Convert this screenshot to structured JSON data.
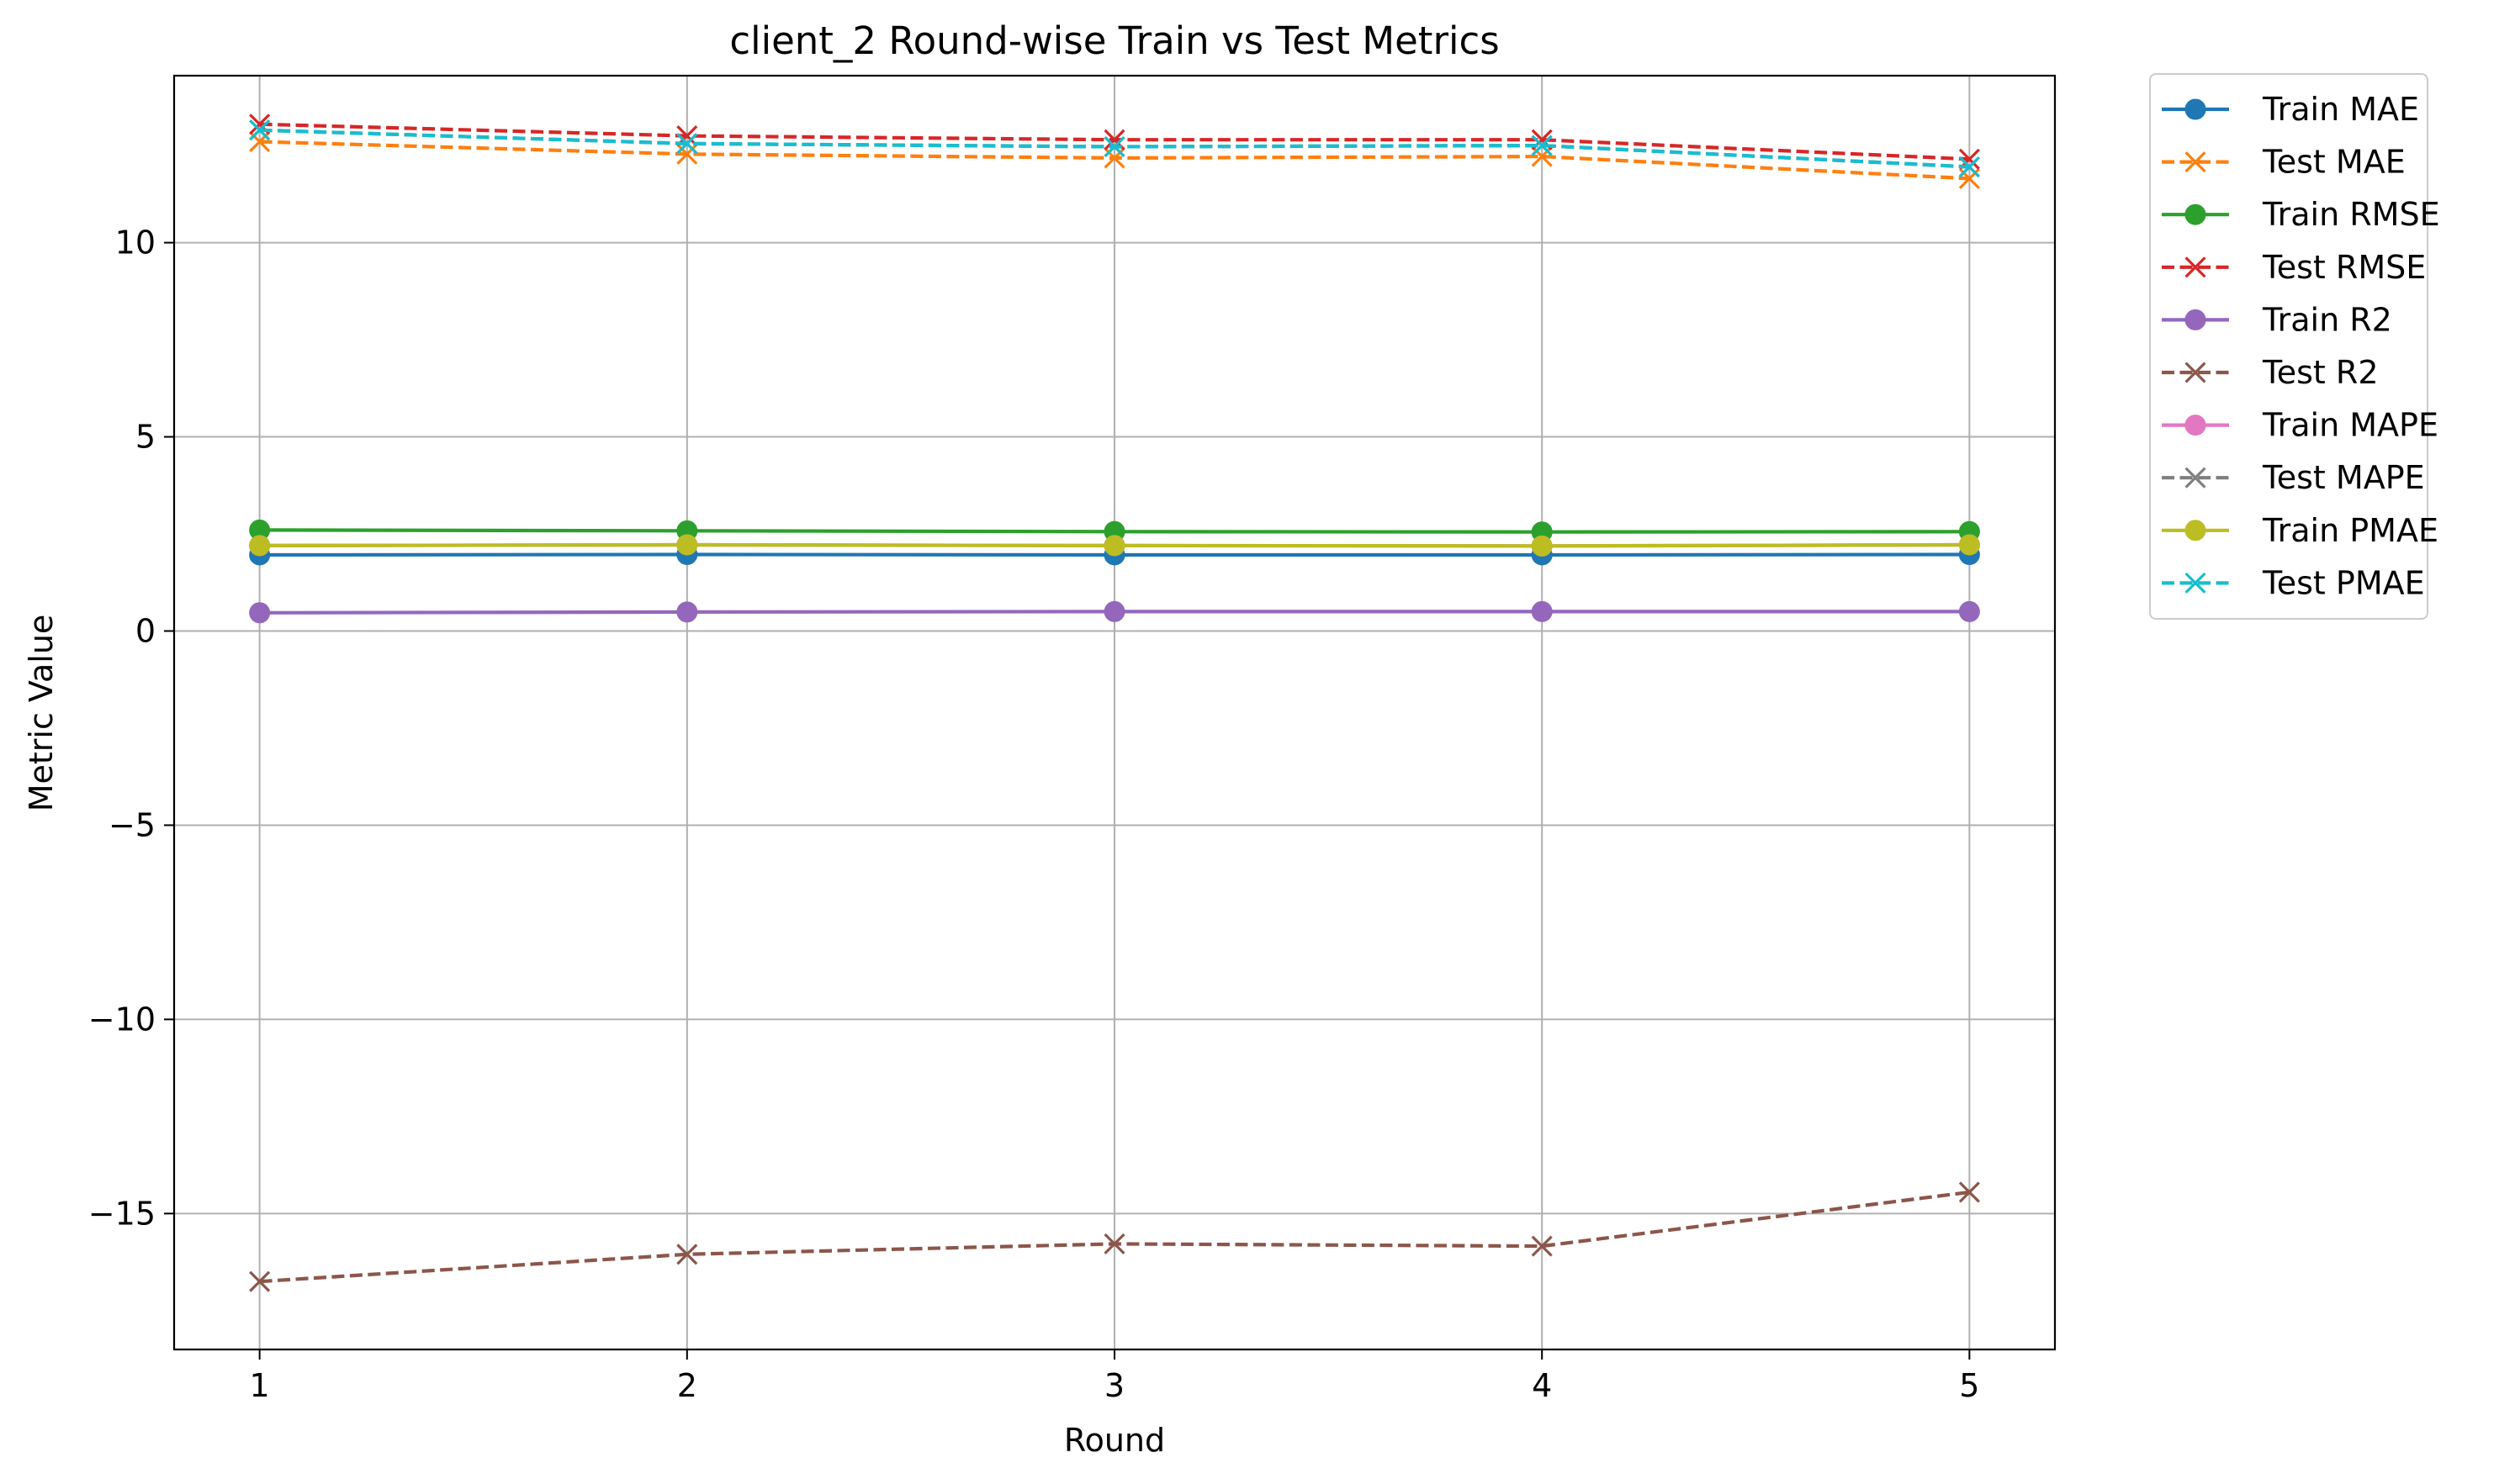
{
  "chart_data": {
    "type": "line",
    "title": "client_2 Round-wise Train vs Test Metrics",
    "xlabel": "Round",
    "ylabel": "Metric Value",
    "x": [
      1,
      2,
      3,
      4,
      5
    ],
    "x_ticks": [
      1,
      2,
      3,
      4,
      5
    ],
    "x_tick_labels": [
      "1",
      "2",
      "3",
      "4",
      "5"
    ],
    "xlim": [
      0.8,
      5.2
    ],
    "y_ticks": [
      10,
      5,
      0,
      -5,
      -10,
      -15
    ],
    "y_tick_labels": [
      "10",
      "5",
      "0",
      "−5",
      "−10",
      "−15"
    ],
    "ylim": [
      -18.5,
      14.3
    ],
    "grid": true,
    "legend_position": "outside-upper-right",
    "series": [
      {
        "name": "Train MAE",
        "values": [
          1.96,
          1.97,
          1.96,
          1.96,
          1.97
        ],
        "color": "#1f77b4",
        "style": "solid",
        "marker": "circle"
      },
      {
        "name": "Test MAE",
        "values": [
          12.6,
          12.28,
          12.18,
          12.22,
          11.65
        ],
        "color": "#ff7f0e",
        "style": "dashed",
        "marker": "x"
      },
      {
        "name": "Train RMSE",
        "values": [
          2.6,
          2.58,
          2.56,
          2.55,
          2.56
        ],
        "color": "#2ca02c",
        "style": "solid",
        "marker": "circle"
      },
      {
        "name": "Test RMSE",
        "values": [
          13.05,
          12.75,
          12.65,
          12.65,
          12.15
        ],
        "color": "#d62728",
        "style": "dashed",
        "marker": "x"
      },
      {
        "name": "Train R2",
        "values": [
          0.47,
          0.49,
          0.5,
          0.5,
          0.5
        ],
        "color": "#9467bd",
        "style": "solid",
        "marker": "circle"
      },
      {
        "name": "Test R2",
        "values": [
          -16.75,
          -16.05,
          -15.78,
          -15.84,
          -14.45
        ],
        "color": "#8c564b",
        "style": "dashed",
        "marker": "x"
      },
      {
        "name": "Train MAPE",
        "values": [
          2.2,
          2.22,
          2.2,
          2.19,
          2.22
        ],
        "color": "#e377c2",
        "style": "solid",
        "marker": "circle"
      },
      {
        "name": "Test MAPE",
        "values": [
          12.9,
          12.55,
          12.47,
          12.5,
          11.95
        ],
        "color": "#7f7f7f",
        "style": "dashed",
        "marker": "x"
      },
      {
        "name": "Train PMAE",
        "values": [
          2.2,
          2.22,
          2.2,
          2.19,
          2.22
        ],
        "color": "#bcbd22",
        "style": "solid",
        "marker": "circle"
      },
      {
        "name": "Test PMAE",
        "values": [
          12.9,
          12.55,
          12.47,
          12.5,
          11.95
        ],
        "color": "#17becf",
        "style": "dashed",
        "marker": "x"
      }
    ]
  }
}
